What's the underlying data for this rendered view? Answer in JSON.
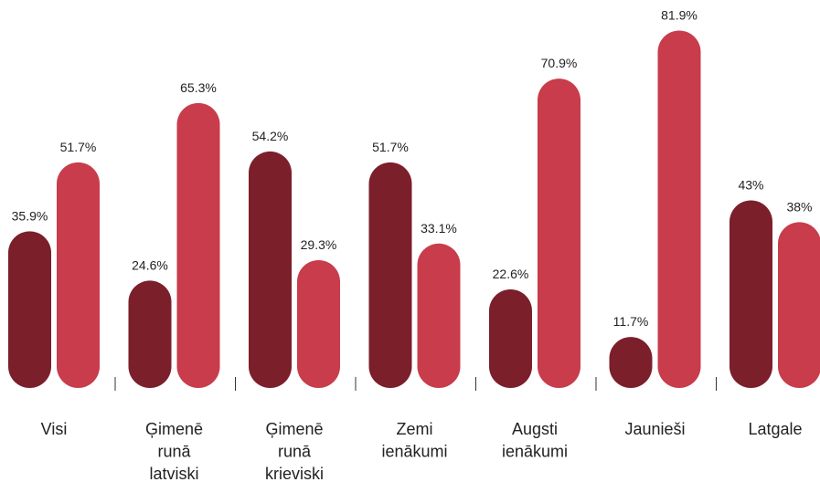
{
  "chart_data": {
    "type": "bar",
    "categories": [
      "Visi",
      "Ģimenē runā latviski",
      "Ģimenē runā krieviski",
      "Zemi ienākumi",
      "Augsti ienākumi",
      "Jaunieši",
      "Latgale"
    ],
    "series": [
      {
        "color": "#7b1f2b",
        "values": [
          35.9,
          24.6,
          54.2,
          51.7,
          22.6,
          11.7,
          43
        ],
        "value_labels": [
          "35.9%",
          "24.6%",
          "54.2%",
          "51.7%",
          "22.6%",
          "11.7%",
          "43%"
        ]
      },
      {
        "color": "#c83c4c",
        "values": [
          51.7,
          65.3,
          29.3,
          33.1,
          70.9,
          81.9,
          38
        ],
        "value_labels": [
          "51.7%",
          "65.3%",
          "29.3%",
          "33.1%",
          "70.9%",
          "81.9%",
          "38%"
        ]
      }
    ]
  }
}
